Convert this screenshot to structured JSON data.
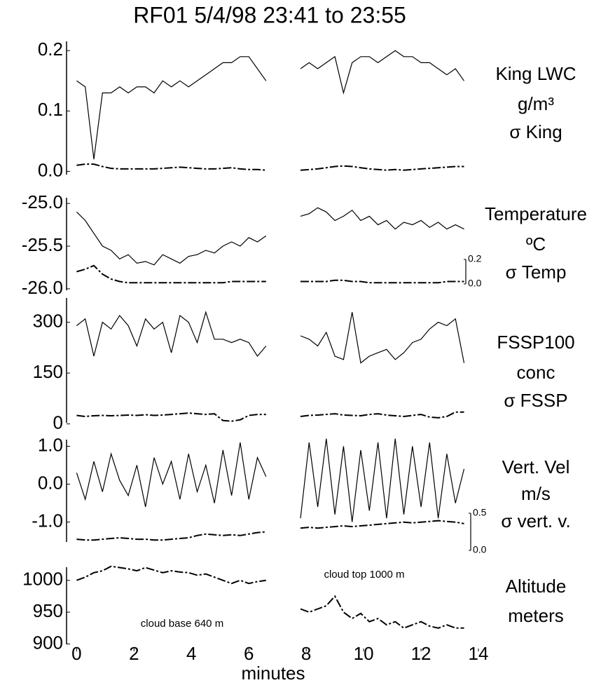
{
  "chart_data": [
    {
      "type": "line",
      "title": "RF01 5/4/98  23:41 to 23:55",
      "units": "g/m³",
      "x": [
        0,
        0.3,
        0.6,
        0.9,
        1.2,
        1.5,
        1.8,
        2.1,
        2.4,
        2.7,
        3.0,
        3.3,
        3.6,
        3.9,
        4.2,
        4.5,
        4.8,
        5.1,
        5.4,
        5.7,
        6.0,
        6.3,
        6.6,
        6.9,
        7.2,
        7.5,
        7.8,
        8.1,
        8.4,
        8.7,
        9.0,
        9.3,
        9.6,
        9.9,
        10.2,
        10.5,
        10.8,
        11.1,
        11.4,
        11.7,
        12.0,
        12.3,
        12.6,
        12.9,
        13.2,
        13.5
      ],
      "xlim": [
        -0.4,
        14
      ],
      "ylim": [
        -0.01,
        0.22
      ],
      "yticks": [
        {
          "value": 0,
          "label": "0.0"
        },
        0.1,
        0.2
      ],
      "series": [
        {
          "name": "King LWC",
          "color": "#000000",
          "values": [
            0.15,
            0.14,
            0.02,
            0.13,
            0.13,
            0.14,
            0.13,
            0.14,
            0.14,
            0.13,
            0.15,
            0.14,
            0.15,
            0.14,
            0.15,
            0.16,
            0.17,
            0.18,
            0.18,
            0.19,
            0.19,
            0.17,
            0.15,
            null,
            null,
            null,
            0.17,
            0.18,
            0.17,
            0.18,
            0.19,
            0.13,
            0.18,
            0.19,
            0.19,
            0.18,
            0.19,
            0.2,
            0.19,
            0.19,
            0.18,
            0.18,
            0.17,
            0.16,
            0.17,
            0.15
          ]
        },
        {
          "name": "σ King",
          "color": "#000000",
          "dashed": true,
          "values": [
            0.01,
            0.012,
            0.012,
            0.008,
            0.005,
            0.004,
            0.004,
            0.004,
            0.004,
            0.004,
            0.005,
            0.006,
            0.007,
            0.006,
            0.005,
            0.004,
            0.004,
            0.005,
            0.006,
            0.004,
            0.003,
            0.003,
            0.002,
            null,
            null,
            null,
            0.002,
            0.003,
            0.004,
            0.006,
            0.008,
            0.009,
            0.008,
            0.006,
            0.004,
            0.003,
            0.002,
            0.003,
            0.002,
            0.003,
            0.004,
            0.005,
            0.006,
            0.007,
            0.008,
            0.008
          ]
        }
      ]
    },
    {
      "type": "line",
      "units": "ºC",
      "x": [
        0,
        0.3,
        0.6,
        0.9,
        1.2,
        1.5,
        1.8,
        2.1,
        2.4,
        2.7,
        3.0,
        3.3,
        3.6,
        3.9,
        4.2,
        4.5,
        4.8,
        5.1,
        5.4,
        5.7,
        6.0,
        6.3,
        6.6,
        6.9,
        7.2,
        7.5,
        7.8,
        8.1,
        8.4,
        8.7,
        9.0,
        9.3,
        9.6,
        9.9,
        10.2,
        10.5,
        10.8,
        11.1,
        11.4,
        11.7,
        12.0,
        12.3,
        12.6,
        12.9,
        13.2,
        13.5
      ],
      "xlim": [
        -0.4,
        14
      ],
      "ylim": [
        -26.05,
        -24.9
      ],
      "yticks": [
        {
          "value": -26,
          "label": "-26.0"
        },
        -25.5,
        {
          "value": -25,
          "label": "-25.0"
        }
      ],
      "y2lim": [
        0,
        0.2
      ],
      "y2ticks": [
        {
          "value": 0,
          "label": "0.0"
        },
        0.2
      ],
      "series": [
        {
          "name": "Temperature",
          "color": "#000000",
          "values": [
            -25.1,
            -25.2,
            -25.35,
            -25.5,
            -25.55,
            -25.65,
            -25.6,
            -25.7,
            -25.68,
            -25.72,
            -25.6,
            -25.65,
            -25.7,
            -25.62,
            -25.6,
            -25.55,
            -25.58,
            -25.5,
            -25.45,
            -25.5,
            -25.4,
            -25.45,
            -25.38,
            null,
            null,
            null,
            -25.15,
            -25.12,
            -25.05,
            -25.1,
            -25.2,
            -25.15,
            -25.08,
            -25.2,
            -25.15,
            -25.25,
            -25.2,
            -25.3,
            -25.22,
            -25.25,
            -25.2,
            -25.28,
            -25.22,
            -25.3,
            -25.25,
            -25.3
          ]
        },
        {
          "name": "σ Temp",
          "color": "#000000",
          "dashed": true,
          "axis": "y2",
          "values": [
            0.1,
            0.12,
            0.15,
            0.08,
            0.04,
            0.02,
            0.01,
            0.01,
            0.01,
            0.01,
            0.01,
            0.01,
            0.01,
            0.01,
            0.01,
            0.01,
            0.01,
            0.01,
            0.02,
            0.02,
            0.02,
            0.02,
            0.02,
            null,
            null,
            null,
            0.02,
            0.02,
            0.02,
            0.02,
            0.03,
            0.03,
            0.02,
            0.02,
            0.01,
            0.01,
            0.01,
            0.01,
            0.01,
            0.01,
            0.01,
            0.01,
            0.01,
            0.02,
            0.02,
            0.02
          ]
        }
      ]
    },
    {
      "type": "line",
      "units": "conc",
      "x": [
        0,
        0.3,
        0.6,
        0.9,
        1.2,
        1.5,
        1.8,
        2.1,
        2.4,
        2.7,
        3.0,
        3.3,
        3.6,
        3.9,
        4.2,
        4.5,
        4.8,
        5.1,
        5.4,
        5.7,
        6.0,
        6.3,
        6.6,
        6.9,
        7.2,
        7.5,
        7.8,
        8.1,
        8.4,
        8.7,
        9.0,
        9.3,
        9.6,
        9.9,
        10.2,
        10.5,
        10.8,
        11.1,
        11.4,
        11.7,
        12.0,
        12.3,
        12.6,
        12.9,
        13.2,
        13.5
      ],
      "xlim": [
        -0.4,
        14
      ],
      "ylim": [
        -5,
        380
      ],
      "yticks": [
        0,
        150,
        300
      ],
      "series": [
        {
          "name": "FSSP100",
          "color": "#000000",
          "values": [
            290,
            310,
            200,
            300,
            280,
            320,
            290,
            230,
            310,
            280,
            300,
            210,
            320,
            300,
            240,
            330,
            250,
            250,
            240,
            250,
            240,
            200,
            230,
            null,
            null,
            null,
            260,
            250,
            230,
            270,
            200,
            190,
            330,
            180,
            200,
            210,
            220,
            190,
            210,
            240,
            250,
            280,
            300,
            290,
            310,
            180
          ]
        },
        {
          "name": "σ FSSP",
          "color": "#000000",
          "dashed": true,
          "values": [
            25,
            22,
            24,
            25,
            24,
            25,
            26,
            25,
            27,
            25,
            26,
            28,
            30,
            32,
            30,
            28,
            30,
            10,
            8,
            12,
            25,
            28,
            28,
            null,
            null,
            null,
            22,
            25,
            26,
            28,
            30,
            26,
            25,
            24,
            28,
            30,
            26,
            24,
            22,
            25,
            28,
            20,
            18,
            22,
            35,
            35
          ]
        }
      ]
    },
    {
      "type": "line",
      "units": "m/s",
      "x": [
        0,
        0.3,
        0.6,
        0.9,
        1.2,
        1.5,
        1.8,
        2.1,
        2.4,
        2.7,
        3.0,
        3.3,
        3.6,
        3.9,
        4.2,
        4.5,
        4.8,
        5.1,
        5.4,
        5.7,
        6.0,
        6.3,
        6.6,
        6.9,
        7.2,
        7.5,
        7.8,
        8.1,
        8.4,
        8.7,
        9.0,
        9.3,
        9.6,
        9.9,
        10.2,
        10.5,
        10.8,
        11.1,
        11.4,
        11.7,
        12.0,
        12.3,
        12.6,
        12.9,
        13.2,
        13.5
      ],
      "xlim": [
        -0.4,
        14
      ],
      "ylim": [
        -1.6,
        1.25
      ],
      "yticks": [
        {
          "value": -1,
          "label": "-1.0"
        },
        {
          "value": 0,
          "label": "0.0"
        },
        {
          "value": 1,
          "label": "1.0"
        }
      ],
      "y2lim": [
        0,
        0.5
      ],
      "y2ticks": [
        {
          "value": 0,
          "label": "0.0"
        },
        0.5
      ],
      "series": [
        {
          "name": "Vert. Vel",
          "color": "#000000",
          "values": [
            0.3,
            -0.4,
            0.6,
            -0.2,
            0.8,
            0.1,
            -0.3,
            0.5,
            -0.6,
            0.7,
            0.0,
            0.6,
            -0.4,
            0.8,
            -0.2,
            0.5,
            -0.5,
            0.9,
            -0.3,
            1.1,
            -0.4,
            0.7,
            0.2,
            null,
            null,
            null,
            -0.9,
            1.1,
            -0.6,
            1.2,
            -0.8,
            1.0,
            -1.0,
            0.9,
            -0.7,
            1.1,
            -0.9,
            1.2,
            -0.8,
            1.0,
            -0.6,
            1.1,
            -0.9,
            0.8,
            -0.5,
            0.4
          ]
        },
        {
          "name": "σ vert. v.",
          "color": "#000000",
          "dashed": true,
          "axis": "y2",
          "values": [
            0.15,
            0.14,
            0.14,
            0.15,
            0.16,
            0.17,
            0.16,
            0.15,
            0.15,
            0.14,
            0.14,
            0.15,
            0.16,
            0.17,
            0.2,
            0.22,
            0.21,
            0.2,
            0.21,
            0.2,
            0.22,
            0.24,
            0.25,
            null,
            null,
            null,
            0.3,
            0.31,
            0.3,
            0.31,
            0.32,
            0.33,
            0.32,
            0.33,
            0.34,
            0.35,
            0.36,
            0.37,
            0.38,
            0.37,
            0.38,
            0.39,
            0.4,
            0.39,
            0.38,
            0.36
          ]
        }
      ]
    },
    {
      "type": "line",
      "units": "meters",
      "xlabel": "minutes",
      "annotations": [
        "cloud base 640 m",
        "cloud top 1000 m"
      ],
      "x": [
        0,
        0.3,
        0.6,
        0.9,
        1.2,
        1.5,
        1.8,
        2.1,
        2.4,
        2.7,
        3.0,
        3.3,
        3.6,
        3.9,
        4.2,
        4.5,
        4.8,
        5.1,
        5.4,
        5.7,
        6.0,
        6.3,
        6.6,
        6.9,
        7.2,
        7.5,
        7.8,
        8.1,
        8.4,
        8.7,
        9.0,
        9.3,
        9.6,
        9.9,
        10.2,
        10.5,
        10.8,
        11.1,
        11.4,
        11.7,
        12.0,
        12.3,
        12.6,
        12.9,
        13.2,
        13.5
      ],
      "xlim": [
        -0.4,
        14
      ],
      "xticks": [
        0,
        2,
        4,
        6,
        8,
        10,
        12,
        14
      ],
      "ylim": [
        895,
        1025
      ],
      "yticks": [
        900,
        950,
        1000
      ],
      "series": [
        {
          "name": "Altitude",
          "color": "#000000",
          "dashed": true,
          "values": [
            1000,
            1005,
            1012,
            1015,
            1022,
            1020,
            1018,
            1015,
            1020,
            1016,
            1012,
            1015,
            1013,
            1012,
            1008,
            1010,
            1005,
            1000,
            995,
            1000,
            995,
            998,
            1000,
            null,
            null,
            null,
            955,
            950,
            955,
            960,
            975,
            950,
            940,
            948,
            935,
            940,
            930,
            935,
            925,
            930,
            935,
            928,
            925,
            930,
            925,
            925
          ]
        }
      ]
    }
  ]
}
